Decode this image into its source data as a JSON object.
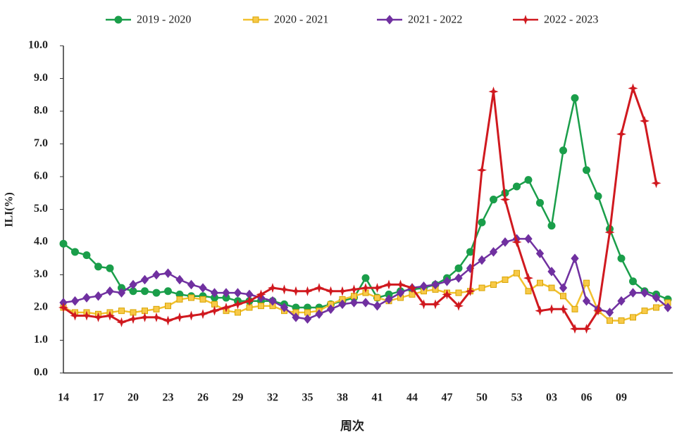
{
  "chart_data": {
    "type": "line",
    "x_label": "周次",
    "y_label": "ILI(%)",
    "categories": [
      "14",
      null,
      null,
      "17",
      null,
      null,
      "20",
      null,
      null,
      "23",
      null,
      null,
      "26",
      null,
      null,
      "29",
      null,
      null,
      "32",
      null,
      null,
      "35",
      null,
      null,
      "38",
      null,
      null,
      "41",
      null,
      null,
      "44",
      null,
      null,
      "47",
      null,
      null,
      "50",
      null,
      null,
      "53",
      null,
      null,
      "03",
      null,
      null,
      "06",
      null,
      null,
      "09",
      null,
      null,
      null,
      null
    ],
    "series": [
      {
        "name": "2019 - 2020",
        "color": "#1a9e4a",
        "marker": "circle",
        "values": [
          3.95,
          3.7,
          3.6,
          3.25,
          3.2,
          2.6,
          2.5,
          2.5,
          2.45,
          2.5,
          2.4,
          2.35,
          2.35,
          2.3,
          2.3,
          2.2,
          2.2,
          2.2,
          2.2,
          2.1,
          2.0,
          2.0,
          2.0,
          2.1,
          2.2,
          2.3,
          2.9,
          2.3,
          2.4,
          2.5,
          2.55,
          2.6,
          2.7,
          2.9,
          3.2,
          3.7,
          4.6,
          5.3,
          5.5,
          5.7,
          5.9,
          5.2,
          4.5,
          6.8,
          8.4,
          6.2,
          5.4,
          4.4,
          3.5,
          2.8,
          2.5,
          2.4,
          2.25
        ]
      },
      {
        "name": "2020 - 2021",
        "color": "#f2c12e",
        "marker": "square",
        "values": [
          2.0,
          1.85,
          1.85,
          1.8,
          1.85,
          1.9,
          1.85,
          1.9,
          1.95,
          2.05,
          2.25,
          2.3,
          2.25,
          2.1,
          1.9,
          1.85,
          2.0,
          2.05,
          2.05,
          1.9,
          1.85,
          1.85,
          1.9,
          2.1,
          2.25,
          2.35,
          2.45,
          2.3,
          2.2,
          2.3,
          2.4,
          2.5,
          2.55,
          2.45,
          2.45,
          2.5,
          2.6,
          2.7,
          2.85,
          3.05,
          2.5,
          2.75,
          2.6,
          2.35,
          1.95,
          2.75,
          1.9,
          1.6,
          1.6,
          1.7,
          1.9,
          2.0,
          2.15
        ]
      },
      {
        "name": "2021 - 2022",
        "color": "#7030a0",
        "marker": "diamond",
        "values": [
          2.15,
          2.2,
          2.3,
          2.35,
          2.5,
          2.45,
          2.7,
          2.85,
          3.0,
          3.05,
          2.85,
          2.7,
          2.6,
          2.45,
          2.45,
          2.45,
          2.4,
          2.3,
          2.2,
          2.0,
          1.7,
          1.65,
          1.8,
          1.95,
          2.1,
          2.15,
          2.15,
          2.05,
          2.25,
          2.45,
          2.6,
          2.65,
          2.7,
          2.8,
          2.9,
          3.2,
          3.45,
          3.7,
          4.0,
          4.1,
          4.1,
          3.65,
          3.1,
          2.6,
          3.5,
          2.2,
          1.95,
          1.85,
          2.2,
          2.45,
          2.45,
          2.3,
          2.0
        ]
      },
      {
        "name": "2022 - 2023",
        "color": "#d0191f",
        "marker": "star",
        "values": [
          2.0,
          1.75,
          1.75,
          1.7,
          1.75,
          1.55,
          1.65,
          1.7,
          1.7,
          1.6,
          1.7,
          1.75,
          1.8,
          1.9,
          2.0,
          2.1,
          2.2,
          2.4,
          2.6,
          2.55,
          2.5,
          2.5,
          2.6,
          2.5,
          2.5,
          2.55,
          2.6,
          2.6,
          2.7,
          2.7,
          2.6,
          2.1,
          2.1,
          2.4,
          2.05,
          2.5,
          6.2,
          8.6,
          5.3,
          4.0,
          2.9,
          1.9,
          1.95,
          1.95,
          1.35,
          1.35,
          1.9,
          4.3,
          7.3,
          8.7,
          7.7,
          5.8,
          null
        ]
      }
    ],
    "ylim": [
      0,
      10
    ],
    "yticks": [
      {
        "value": 0,
        "label": "0.0"
      },
      {
        "value": 1,
        "label": "1.0"
      },
      {
        "value": 2,
        "label": "2.0"
      },
      {
        "value": 3,
        "label": "3.0"
      },
      {
        "value": 4,
        "label": "4.0"
      },
      {
        "value": 5,
        "label": "5.0"
      },
      {
        "value": 6,
        "label": "6.0"
      },
      {
        "value": 7,
        "label": "7.0"
      },
      {
        "value": 8,
        "label": "8.0"
      },
      {
        "value": 9,
        "label": "9.0"
      },
      {
        "value": 10,
        "label": "10.0"
      }
    ],
    "grid": false,
    "legend": "top"
  }
}
